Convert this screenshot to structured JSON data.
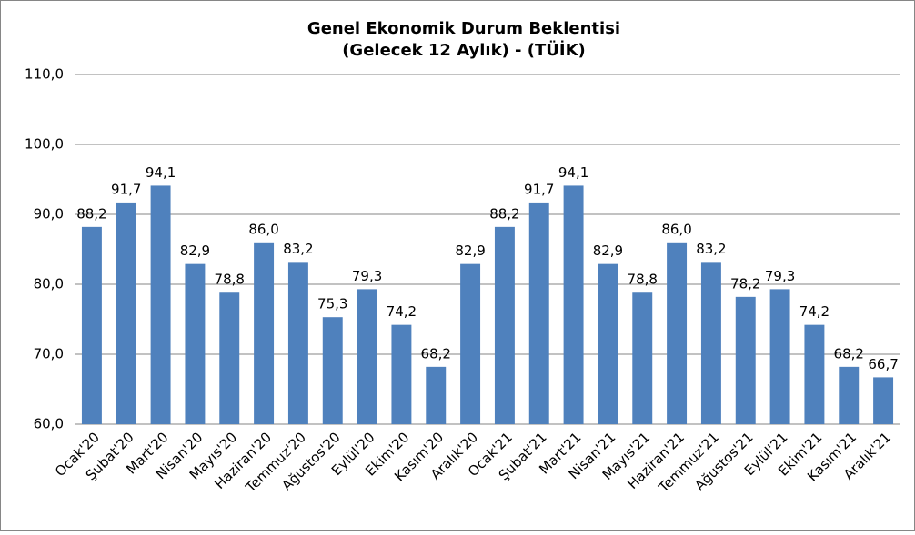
{
  "chart_data": {
    "type": "bar",
    "title": [
      "Genel Ekonomik Durum Beklentisi",
      "(Gelecek 12 Aylık) - (TÜİK)"
    ],
    "categories": [
      "Ocak'20",
      "Şubat'20",
      "Mart'20",
      "Nisan'20",
      "Mayıs'20",
      "Haziran'20",
      "Temmuz'20",
      "Ağustos'20",
      "Eylül'20",
      "Ekim'20",
      "Kasım'20",
      "Aralık'20",
      "Ocak'21",
      "Şubat'21",
      "Mart'21",
      "Nisan'21",
      "Mayıs'21",
      "Haziran'21",
      "Temmuz'21",
      "Ağustos'21",
      "Eylül'21",
      "Ekim'21",
      "Kasım'21",
      "Aralık'21"
    ],
    "values": [
      88.2,
      91.7,
      94.1,
      82.9,
      78.8,
      86.0,
      83.2,
      75.3,
      79.3,
      74.2,
      68.2,
      82.9,
      88.2,
      91.7,
      94.1,
      82.9,
      78.8,
      86.0,
      83.2,
      78.2,
      79.3,
      74.2,
      68.2,
      66.7
    ],
    "value_labels": [
      "88,2",
      "91,7",
      "94,1",
      "82,9",
      "78,8",
      "86,0",
      "83,2",
      "75,3",
      "79,3",
      "74,2",
      "68,2",
      "82,9",
      "88,2",
      "91,7",
      "94,1",
      "82,9",
      "78,8",
      "86,0",
      "83,2",
      "78,2",
      "79,3",
      "74,2",
      "68,2",
      "66,7"
    ],
    "color": "#4f81bd",
    "ylim": [
      60,
      110
    ],
    "yticks": [
      {
        "value": 60,
        "label": "60,0"
      },
      {
        "value": 70,
        "label": "70,0"
      },
      {
        "value": 80,
        "label": "80,0"
      },
      {
        "value": 90,
        "label": "90,0"
      },
      {
        "value": 100,
        "label": "100,0"
      },
      {
        "value": 110,
        "label": "110,0"
      }
    ],
    "grid": true
  }
}
